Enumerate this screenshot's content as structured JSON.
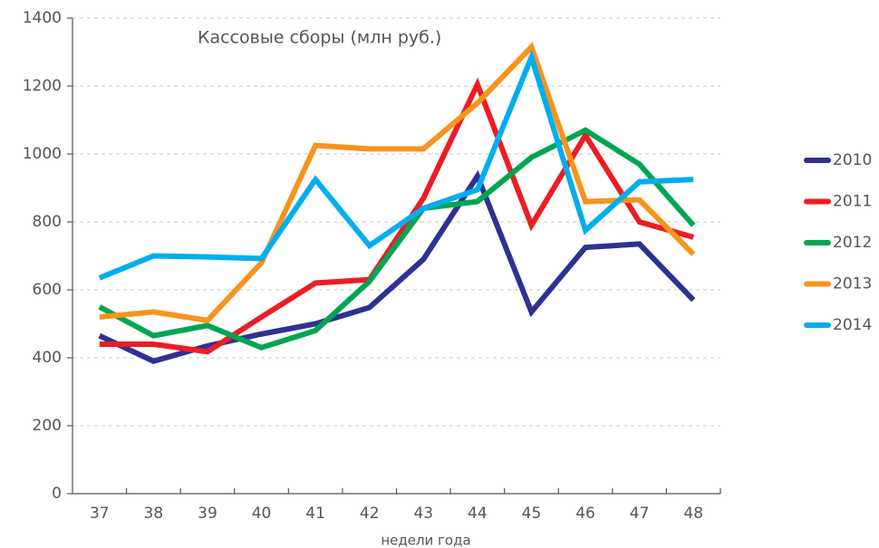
{
  "chart_data": {
    "type": "line",
    "title": "Кассовые сборы (млн руб.)",
    "x_label": "недели года",
    "categories": [
      "37",
      "38",
      "39",
      "40",
      "41",
      "42",
      "43",
      "44",
      "45",
      "46",
      "47",
      "48"
    ],
    "series": [
      {
        "name": "2010",
        "color": "#2e3192",
        "values": [
          465,
          390,
          435,
          470,
          500,
          548,
          690,
          935,
          535,
          725,
          735,
          570
        ]
      },
      {
        "name": "2011",
        "color": "#ed1c24",
        "values": [
          440,
          440,
          418,
          520,
          620,
          630,
          870,
          1205,
          790,
          1055,
          800,
          755
        ]
      },
      {
        "name": "2012",
        "color": "#00a651",
        "values": [
          550,
          465,
          495,
          430,
          480,
          625,
          840,
          860,
          990,
          1070,
          970,
          790
        ]
      },
      {
        "name": "2013",
        "color": "#f7941d",
        "values": [
          520,
          535,
          510,
          680,
          1025,
          1015,
          1015,
          1150,
          1315,
          860,
          865,
          705
        ]
      },
      {
        "name": "2014",
        "color": "#00aeef",
        "values": [
          635,
          700,
          697,
          692,
          925,
          730,
          840,
          895,
          1285,
          775,
          918,
          925
        ]
      }
    ],
    "ylim": [
      0,
      1400
    ],
    "yticks": [
      0,
      200,
      400,
      600,
      800,
      1000,
      1200,
      1400
    ],
    "grid": true,
    "legend": "right"
  }
}
